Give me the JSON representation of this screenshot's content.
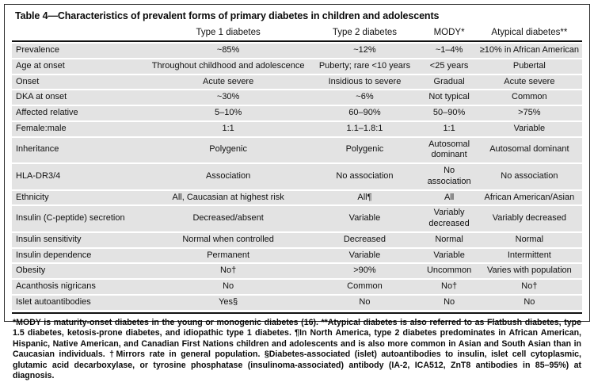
{
  "title": "Table 4—Characteristics of prevalent forms of primary diabetes in children and adolescents",
  "table": {
    "columns": [
      "",
      "Type 1 diabetes",
      "Type 2 diabetes",
      "MODY*",
      "Atypical diabetes**"
    ],
    "rows": [
      {
        "label": "Prevalence",
        "values": [
          "~85%",
          "~12%",
          "~1–4%",
          "≥10% in African American"
        ]
      },
      {
        "label": "Age at onset",
        "values": [
          "Throughout childhood and adolescence",
          "Puberty; rare <10 years",
          "<25 years",
          "Pubertal"
        ]
      },
      {
        "label": "Onset",
        "values": [
          "Acute severe",
          "Insidious to severe",
          "Gradual",
          "Acute severe"
        ]
      },
      {
        "label": "DKA at onset",
        "values": [
          "~30%",
          "~6%",
          "Not typical",
          "Common"
        ]
      },
      {
        "label": "Affected relative",
        "values": [
          "5–10%",
          "60–90%",
          "50–90%",
          ">75%"
        ]
      },
      {
        "label": "Female:male",
        "values": [
          "1:1",
          "1.1–1.8:1",
          "1:1",
          "Variable"
        ]
      },
      {
        "label": "Inheritance",
        "values": [
          "Polygenic",
          "Polygenic",
          "Autosomal dominant",
          "Autosomal dominant"
        ]
      },
      {
        "label": "HLA-DR3/4",
        "values": [
          "Association",
          "No association",
          "No association",
          "No association"
        ]
      },
      {
        "label": "Ethnicity",
        "values": [
          "All, Caucasian at highest risk",
          "All¶",
          "All",
          "African American/Asian"
        ]
      },
      {
        "label": "Insulin (C-peptide) secretion",
        "values": [
          "Decreased/absent",
          "Variable",
          "Variably decreased",
          "Variably decreased"
        ]
      },
      {
        "label": "Insulin sensitivity",
        "values": [
          "Normal when controlled",
          "Decreased",
          "Normal",
          "Normal"
        ]
      },
      {
        "label": "Insulin dependence",
        "values": [
          "Permanent",
          "Variable",
          "Variable",
          "Intermittent"
        ]
      },
      {
        "label": "Obesity",
        "values": [
          "No†",
          ">90%",
          "Uncommon",
          "Varies with population"
        ]
      },
      {
        "label": "Acanthosis nigricans",
        "values": [
          "No",
          "Common",
          "No†",
          "No†"
        ]
      },
      {
        "label": "Islet autoantibodies",
        "values": [
          "Yes§",
          "No",
          "No",
          "No"
        ]
      }
    ]
  },
  "footnote": "*MODY is maturity-onset diabetes in the young or monogenic diabetes (16). **Atypical diabetes is also referred to as Flatbush diabetes, type 1.5 diabetes, ketosis-prone diabetes, and idiopathic type 1 diabetes. ¶In North America, type 2 diabetes predominates in African American, Hispanic, Native American, and Canadian First Nations children and adolescents and is also more common in Asian and South Asian than in Caucasian individuals. †Mirrors rate in general population. §Diabetes-associated (islet) autoantibodies to insulin, islet cell cytoplasmic, glutamic acid decarboxylase, or tyrosine phosphatase (insulinoma-associated) antibody (IA-2, ICA512, ZnT8 antibodies in 85–95%) at diagnosis.",
  "colors": {
    "row_band": "#e3e3e3",
    "rule": "#111111",
    "text": "#111111",
    "background": "#ffffff"
  }
}
